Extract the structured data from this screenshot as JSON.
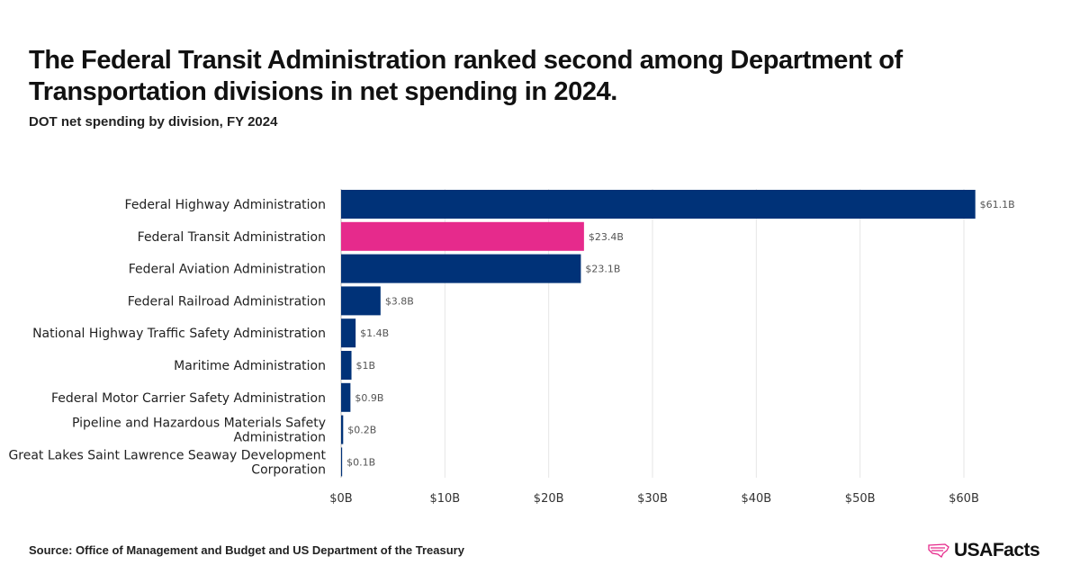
{
  "title": "The Federal Transit Administration ranked second among Department of Transportation divisions in net spending in 2024.",
  "subtitle": "DOT net spending by division, FY 2024",
  "source": "Source: Office of Management and Budget and US Department of the Treasury",
  "logo": "USAFacts",
  "colors": {
    "default": "#003278",
    "highlight": "#e62a8c",
    "grid": "#e6e6e6"
  },
  "chart_data": {
    "type": "bar",
    "orientation": "horizontal",
    "categories": [
      [
        "Federal Highway Administration"
      ],
      [
        "Federal Transit Administration"
      ],
      [
        "Federal Aviation Administration"
      ],
      [
        "Federal Railroad Administration"
      ],
      [
        "National Highway Traffic Safety Administration"
      ],
      [
        "Maritime Administration"
      ],
      [
        "Federal Motor Carrier Safety Administration"
      ],
      [
        "Pipeline and Hazardous Materials Safety",
        "Administration"
      ],
      [
        "Great Lakes Saint Lawrence Seaway Development",
        "Corporation"
      ]
    ],
    "values": [
      61.1,
      23.4,
      23.1,
      3.8,
      1.4,
      1.0,
      0.9,
      0.2,
      0.1
    ],
    "labels": [
      "$61.1B",
      "$23.4B",
      "$23.1B",
      "$3.8B",
      "$1.4B",
      "$1B",
      "$0.9B",
      "$0.2B",
      "$0.1B"
    ],
    "highlight_index": 1,
    "xlim": [
      0,
      60
    ],
    "xticks": [
      0,
      10,
      20,
      30,
      40,
      50,
      60
    ],
    "xtick_labels": [
      "$0B",
      "$10B",
      "$20B",
      "$30B",
      "$40B",
      "$50B",
      "$60B"
    ],
    "grid": true,
    "xlabel": "",
    "ylabel": ""
  }
}
